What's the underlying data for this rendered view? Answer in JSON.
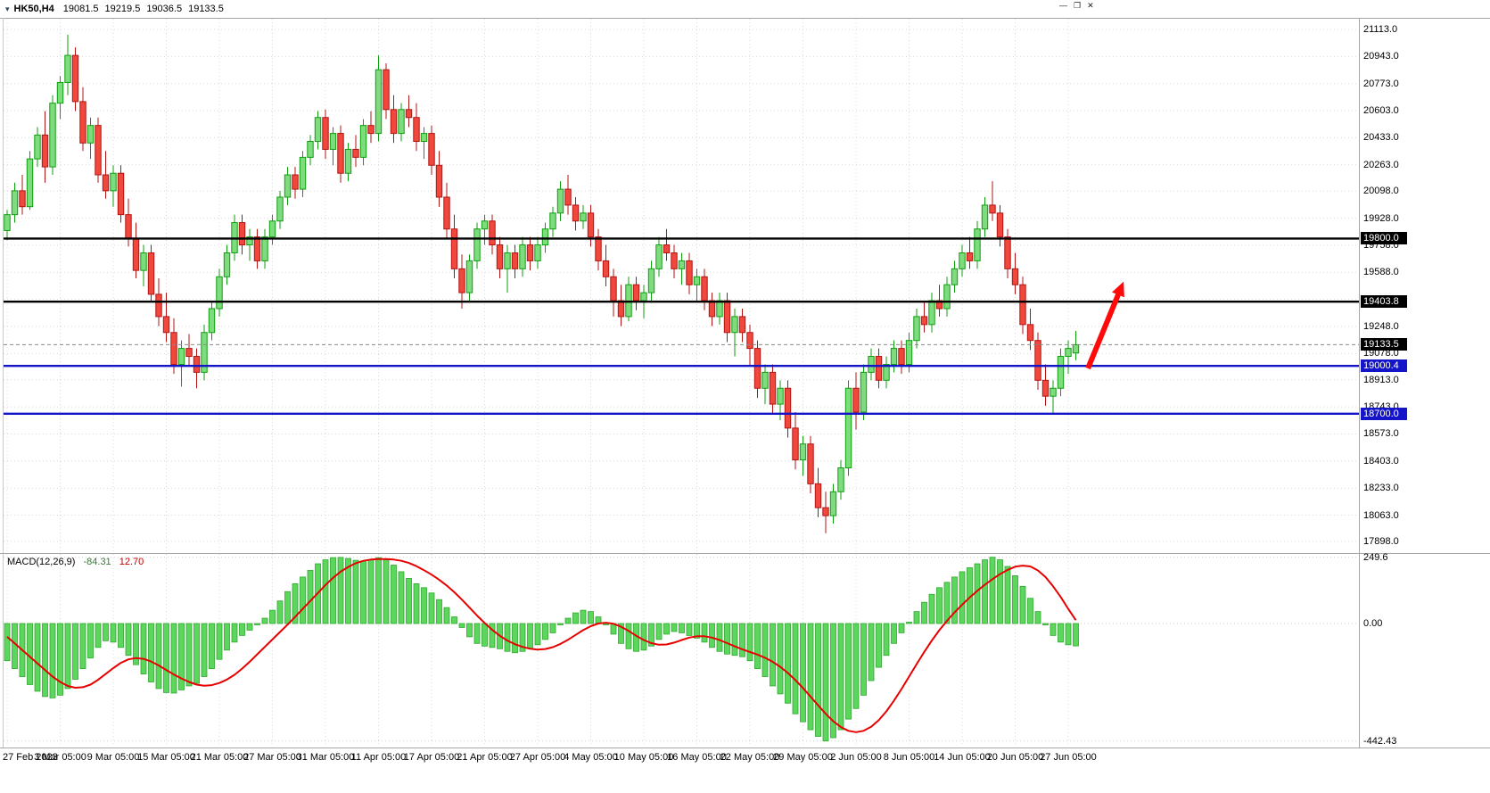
{
  "header": {
    "icon": "▾",
    "symbol_period": "HK50,H4",
    "open": "19081.5",
    "high": "19219.5",
    "low": "19036.5",
    "close": "19133.5"
  },
  "window_controls": {
    "minimize": "—",
    "restore": "❐",
    "close": "✕"
  },
  "chart_data": {
    "type": "candlestick",
    "title": "HK50,H4",
    "x_axis": {
      "labels": [
        "27 Feb 2023",
        "3 Mar 05:00",
        "9 Mar 05:00",
        "15 Mar 05:00",
        "21 Mar 05:00",
        "27 Mar 05:00",
        "31 Mar 05:00",
        "11 Apr 05:00",
        "17 Apr 05:00",
        "21 Apr 05:00",
        "27 Apr 05:00",
        "4 May 05:00",
        "10 May 05:00",
        "16 May 05:00",
        "22 May 05:00",
        "29 May 05:00",
        "2 Jun 05:00",
        "8 Jun 05:00",
        "14 Jun 05:00",
        "20 Jun 05:00",
        "27 Jun 05:00"
      ],
      "label_every_n_bars": 7
    },
    "y_axis": {
      "tick_labels": [
        "21113.0",
        "20943.0",
        "20773.0",
        "20603.0",
        "20433.0",
        "20263.0",
        "20098.0",
        "19928.0",
        "19758.0",
        "19588.0",
        "19418.0",
        "19248.0",
        "19078.0",
        "18913.0",
        "18743.0",
        "18573.0",
        "18403.0",
        "18233.0",
        "18063.0",
        "17898.0"
      ],
      "range": [
        17898.0,
        21113.0
      ]
    },
    "candles": [
      [
        19850,
        19980,
        19790,
        19950
      ],
      [
        19950,
        20150,
        19900,
        20100
      ],
      [
        20100,
        20200,
        19950,
        20000
      ],
      [
        20000,
        20350,
        19980,
        20300
      ],
      [
        20300,
        20500,
        20250,
        20450
      ],
      [
        20450,
        20600,
        20150,
        20250
      ],
      [
        20250,
        20700,
        20200,
        20650
      ],
      [
        20650,
        20820,
        20550,
        20780
      ],
      [
        20780,
        21080,
        20700,
        20950
      ],
      [
        20950,
        21000,
        20600,
        20660
      ],
      [
        20660,
        20750,
        20350,
        20400
      ],
      [
        20400,
        20560,
        20300,
        20510
      ],
      [
        20510,
        20560,
        20150,
        20200
      ],
      [
        20200,
        20350,
        20050,
        20100
      ],
      [
        20100,
        20260,
        20000,
        20210
      ],
      [
        20210,
        20260,
        19900,
        19950
      ],
      [
        19950,
        20050,
        19750,
        19800
      ],
      [
        19800,
        19900,
        19550,
        19600
      ],
      [
        19600,
        19760,
        19500,
        19710
      ],
      [
        19710,
        19760,
        19400,
        19450
      ],
      [
        19450,
        19550,
        19250,
        19310
      ],
      [
        19310,
        19460,
        19150,
        19210
      ],
      [
        19210,
        19300,
        18950,
        19010
      ],
      [
        19010,
        19160,
        18870,
        19110
      ],
      [
        19110,
        19200,
        19000,
        19060
      ],
      [
        19060,
        19110,
        18860,
        18960
      ],
      [
        18960,
        19260,
        18910,
        19210
      ],
      [
        19210,
        19410,
        19160,
        19360
      ],
      [
        19360,
        19610,
        19310,
        19560
      ],
      [
        19560,
        19760,
        19510,
        19710
      ],
      [
        19710,
        19950,
        19660,
        19900
      ],
      [
        19900,
        19950,
        19700,
        19760
      ],
      [
        19760,
        19860,
        19660,
        19810
      ],
      [
        19810,
        19860,
        19610,
        19660
      ],
      [
        19660,
        19860,
        19610,
        19810
      ],
      [
        19810,
        19950,
        19760,
        19910
      ],
      [
        19910,
        20100,
        19860,
        20060
      ],
      [
        20060,
        20250,
        20010,
        20200
      ],
      [
        20200,
        20250,
        20050,
        20110
      ],
      [
        20110,
        20350,
        20060,
        20310
      ],
      [
        20310,
        20450,
        20260,
        20410
      ],
      [
        20410,
        20600,
        20360,
        20560
      ],
      [
        20560,
        20610,
        20300,
        20360
      ],
      [
        20360,
        20500,
        20260,
        20460
      ],
      [
        20460,
        20510,
        20150,
        20210
      ],
      [
        20210,
        20400,
        20160,
        20360
      ],
      [
        20360,
        20450,
        20250,
        20310
      ],
      [
        20310,
        20550,
        20260,
        20510
      ],
      [
        20510,
        20600,
        20400,
        20460
      ],
      [
        20460,
        20950,
        20410,
        20860
      ],
      [
        20860,
        20900,
        20550,
        20610
      ],
      [
        20610,
        20700,
        20400,
        20460
      ],
      [
        20460,
        20650,
        20410,
        20610
      ],
      [
        20610,
        20700,
        20500,
        20560
      ],
      [
        20560,
        20650,
        20350,
        20410
      ],
      [
        20410,
        20500,
        20300,
        20460
      ],
      [
        20460,
        20510,
        20200,
        20260
      ],
      [
        20260,
        20350,
        20000,
        20060
      ],
      [
        20060,
        20150,
        19800,
        19860
      ],
      [
        19860,
        19950,
        19550,
        19610
      ],
      [
        19610,
        19700,
        19360,
        19460
      ],
      [
        19460,
        19700,
        19410,
        19660
      ],
      [
        19660,
        19900,
        19610,
        19860
      ],
      [
        19860,
        19950,
        19760,
        19910
      ],
      [
        19910,
        19950,
        19700,
        19760
      ],
      [
        19760,
        19810,
        19550,
        19610
      ],
      [
        19610,
        19760,
        19460,
        19710
      ],
      [
        19710,
        19760,
        19550,
        19610
      ],
      [
        19610,
        19810,
        19560,
        19760
      ],
      [
        19760,
        19810,
        19600,
        19660
      ],
      [
        19660,
        19810,
        19610,
        19760
      ],
      [
        19760,
        19900,
        19710,
        19860
      ],
      [
        19860,
        20000,
        19810,
        19960
      ],
      [
        19960,
        20160,
        19910,
        20110
      ],
      [
        20110,
        20200,
        19950,
        20010
      ],
      [
        20010,
        20060,
        19850,
        19910
      ],
      [
        19910,
        20010,
        19860,
        19960
      ],
      [
        19960,
        20010,
        19750,
        19810
      ],
      [
        19810,
        19860,
        19600,
        19660
      ],
      [
        19660,
        19760,
        19500,
        19560
      ],
      [
        19560,
        19610,
        19310,
        19410
      ],
      [
        19410,
        19510,
        19250,
        19310
      ],
      [
        19310,
        19560,
        19280,
        19510
      ],
      [
        19510,
        19560,
        19350,
        19410
      ],
      [
        19410,
        19510,
        19300,
        19460
      ],
      [
        19460,
        19660,
        19410,
        19610
      ],
      [
        19610,
        19810,
        19560,
        19760
      ],
      [
        19760,
        19860,
        19660,
        19710
      ],
      [
        19710,
        19760,
        19550,
        19610
      ],
      [
        19610,
        19710,
        19510,
        19660
      ],
      [
        19660,
        19710,
        19450,
        19510
      ],
      [
        19510,
        19610,
        19410,
        19560
      ],
      [
        19560,
        19610,
        19350,
        19410
      ],
      [
        19410,
        19460,
        19250,
        19310
      ],
      [
        19310,
        19460,
        19260,
        19410
      ],
      [
        19410,
        19460,
        19150,
        19210
      ],
      [
        19210,
        19360,
        19060,
        19310
      ],
      [
        19310,
        19360,
        19150,
        19210
      ],
      [
        19210,
        19260,
        19000,
        19110
      ],
      [
        19110,
        19160,
        18800,
        18860
      ],
      [
        18860,
        19010,
        18760,
        18960
      ],
      [
        18960,
        19010,
        18700,
        18760
      ],
      [
        18760,
        18910,
        18660,
        18860
      ],
      [
        18860,
        18910,
        18550,
        18610
      ],
      [
        18610,
        18710,
        18350,
        18410
      ],
      [
        18410,
        18560,
        18310,
        18510
      ],
      [
        18510,
        18560,
        18200,
        18260
      ],
      [
        18260,
        18360,
        18050,
        18110
      ],
      [
        18110,
        18210,
        17950,
        18060
      ],
      [
        18060,
        18260,
        18010,
        18210
      ],
      [
        18210,
        18410,
        18160,
        18360
      ],
      [
        18360,
        18910,
        18310,
        18860
      ],
      [
        18860,
        18960,
        18600,
        18710
      ],
      [
        18710,
        19010,
        18660,
        18960
      ],
      [
        18960,
        19110,
        18910,
        19060
      ],
      [
        19060,
        19110,
        18860,
        18910
      ],
      [
        18910,
        19060,
        18860,
        19010
      ],
      [
        19010,
        19160,
        18960,
        19110
      ],
      [
        19110,
        19160,
        18950,
        19010
      ],
      [
        19010,
        19210,
        18960,
        19160
      ],
      [
        19160,
        19360,
        19110,
        19310
      ],
      [
        19310,
        19410,
        19210,
        19260
      ],
      [
        19260,
        19460,
        19210,
        19410
      ],
      [
        19410,
        19510,
        19310,
        19360
      ],
      [
        19360,
        19560,
        19310,
        19510
      ],
      [
        19510,
        19660,
        19460,
        19610
      ],
      [
        19610,
        19760,
        19560,
        19710
      ],
      [
        19710,
        19810,
        19610,
        19660
      ],
      [
        19660,
        19910,
        19610,
        19860
      ],
      [
        19860,
        20060,
        19810,
        20010
      ],
      [
        20010,
        20160,
        19910,
        19960
      ],
      [
        19960,
        20010,
        19750,
        19810
      ],
      [
        19810,
        19860,
        19550,
        19610
      ],
      [
        19610,
        19710,
        19450,
        19510
      ],
      [
        19510,
        19560,
        19200,
        19260
      ],
      [
        19260,
        19360,
        19100,
        19160
      ],
      [
        19160,
        19210,
        18850,
        18910
      ],
      [
        18910,
        19010,
        18750,
        18810
      ],
      [
        18810,
        18910,
        18700,
        18860
      ],
      [
        18860,
        19110,
        18810,
        19060
      ],
      [
        19060,
        19160,
        18950,
        19110
      ],
      [
        19081.5,
        19219.5,
        19036.5,
        19133.5
      ]
    ],
    "levels": [
      {
        "label": "19800.0",
        "price": 19800.0,
        "color": "#000000"
      },
      {
        "label": "19403.8",
        "price": 19403.8,
        "color": "#000000"
      },
      {
        "label": "19000.4",
        "price": 19000.4,
        "color": "#1414C8"
      },
      {
        "label": "18700.0",
        "price": 18700.0,
        "color": "#1414C8"
      }
    ],
    "current_price": {
      "label": "19133.5",
      "price": 19133.5,
      "tag_color": "#000000"
    },
    "arrow_annotation": {
      "color": "#FF0A0A",
      "from": {
        "bar": 142.6,
        "price": 18985
      },
      "to": {
        "bar": 147.3,
        "price": 19530
      }
    },
    "colors": {
      "background": "#FFFFFF",
      "grid": "#D9D9D9",
      "bull_fill": "#7EDC7E",
      "bull_border": "#0F9E0F",
      "bear_fill": "#F0483C",
      "bear_border": "#B21414",
      "hist_fill": "#5CD65C",
      "hist_border": "#2EA82E",
      "signal_line": "#E80000"
    },
    "indicator": {
      "name": "MACD(12,26,9)",
      "macd_value": "-84.31",
      "signal_value": "12.70",
      "y_tick_labels": [
        "249.6",
        "0.00",
        "-442.43"
      ],
      "y_ticks": [
        249.6,
        0,
        -442.43
      ],
      "histogram": [
        -140,
        -170,
        -200,
        -230,
        -255,
        -275,
        -280,
        -270,
        -245,
        -210,
        -170,
        -130,
        -90,
        -65,
        -70,
        -90,
        -120,
        -155,
        -190,
        -220,
        -245,
        -260,
        -262,
        -250,
        -235,
        -225,
        -200,
        -170,
        -135,
        -100,
        -70,
        -45,
        -25,
        -5,
        20,
        50,
        85,
        120,
        150,
        175,
        200,
        225,
        240,
        248,
        249,
        245,
        238,
        235,
        240,
        248,
        240,
        220,
        195,
        170,
        150,
        135,
        115,
        90,
        60,
        25,
        -15,
        -50,
        -75,
        -85,
        -90,
        -95,
        -105,
        -110,
        -105,
        -95,
        -80,
        -60,
        -35,
        -5,
        20,
        40,
        50,
        45,
        25,
        -5,
        -40,
        -75,
        -95,
        -105,
        -100,
        -85,
        -60,
        -40,
        -30,
        -35,
        -45,
        -55,
        -70,
        -90,
        -105,
        -115,
        -120,
        -125,
        -140,
        -170,
        -200,
        -235,
        -265,
        -300,
        -340,
        -370,
        -400,
        -425,
        -442.43,
        -430,
        -400,
        -360,
        -320,
        -270,
        -215,
        -165,
        -120,
        -75,
        -35,
        5,
        45,
        80,
        110,
        135,
        155,
        175,
        195,
        210,
        225,
        240,
        249.6,
        240,
        215,
        180,
        140,
        95,
        45,
        -5,
        -45,
        -70,
        -80,
        -84.31
      ],
      "signal": [
        -50,
        -75,
        -100,
        -125,
        -150,
        -175,
        -200,
        -220,
        -235,
        -242,
        -240,
        -230,
        -212,
        -190,
        -168,
        -148,
        -135,
        -130,
        -133,
        -143,
        -158,
        -175,
        -192,
        -207,
        -220,
        -230,
        -234,
        -232,
        -224,
        -211,
        -193,
        -170,
        -144,
        -116,
        -88,
        -60,
        -32,
        -4,
        25,
        55,
        85,
        115,
        145,
        172,
        195,
        213,
        227,
        236,
        241,
        243,
        243,
        241,
        236,
        228,
        216,
        201,
        184,
        165,
        143,
        118,
        90,
        60,
        30,
        2,
        -24,
        -46,
        -64,
        -78,
        -88,
        -95,
        -98,
        -96,
        -89,
        -77,
        -61,
        -43,
        -25,
        -10,
        0,
        3,
        -1,
        -12,
        -28,
        -46,
        -62,
        -74,
        -80,
        -79,
        -72,
        -62,
        -53,
        -48,
        -48,
        -53,
        -62,
        -74,
        -86,
        -97,
        -107,
        -117,
        -129,
        -144,
        -163,
        -186,
        -213,
        -243,
        -275,
        -308,
        -340,
        -368,
        -390,
        -404,
        -409,
        -404,
        -389,
        -364,
        -331,
        -291,
        -247,
        -200,
        -153,
        -107,
        -64,
        -25,
        10,
        42,
        71,
        98,
        123,
        146,
        167,
        186,
        202,
        214,
        218,
        215,
        200,
        175,
        140,
        100,
        55,
        12.7
      ]
    }
  }
}
